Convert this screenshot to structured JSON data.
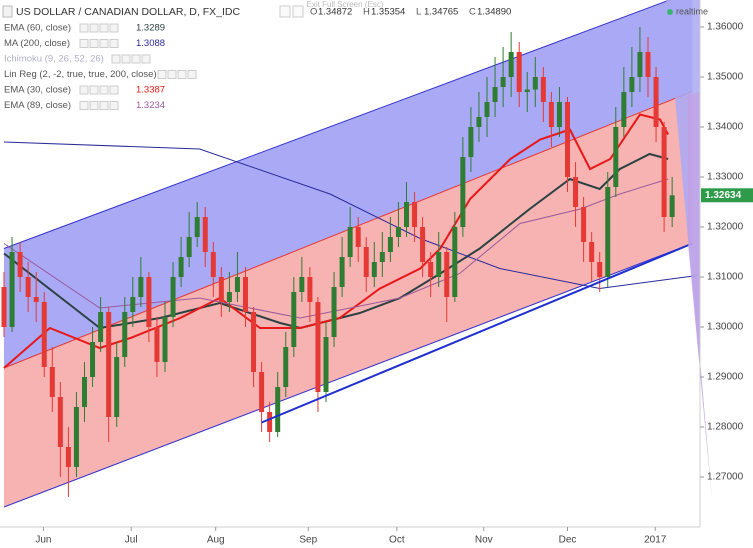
{
  "header": {
    "title": "US DOLLAR / CANADIAN DOLLAR, D, FX_IDC",
    "exit_hint": "Exit Full Screen (Esc)",
    "status": "realtime",
    "ohlc": [
      {
        "label": "O",
        "value": "1.34872"
      },
      {
        "label": "H",
        "value": "1.35354"
      },
      {
        "label": "L",
        "value": "1.34765"
      },
      {
        "label": "C",
        "value": "1.34890"
      }
    ]
  },
  "chart_data": {
    "type": "candlestick",
    "ylim": [
      1.26,
      1.3654
    ],
    "yticks": [
      {
        "value": 1.27,
        "label": "1.27000"
      },
      {
        "value": 1.28,
        "label": "1.28000"
      },
      {
        "value": 1.29,
        "label": "1.29000"
      },
      {
        "value": 1.3,
        "label": "1.30000"
      },
      {
        "value": 1.31,
        "label": "1.31000"
      },
      {
        "value": 1.32,
        "label": "1.32000"
      },
      {
        "value": 1.33,
        "label": "1.33000"
      },
      {
        "value": 1.34,
        "label": "1.34000"
      },
      {
        "value": 1.35,
        "label": "1.35000"
      },
      {
        "value": 1.36,
        "label": "1.36000"
      }
    ],
    "xticks": [
      {
        "value": 4.9,
        "label": "Jun"
      },
      {
        "value": 15.8,
        "label": "Jul"
      },
      {
        "value": 26.3,
        "label": "Aug"
      },
      {
        "value": 37.8,
        "label": "Sep"
      },
      {
        "value": 48.8,
        "label": "Oct"
      },
      {
        "value": 59.6,
        "label": "Nov"
      },
      {
        "value": 70,
        "label": "Dec"
      },
      {
        "value": 80.9,
        "label": "2017"
      }
    ],
    "up_color": "#2e7d32",
    "down_color": "#e53935",
    "ohlc": [
      [
        1.308,
        1.311,
        1.298,
        1.3
      ],
      [
        1.3,
        1.318,
        1.299,
        1.315
      ],
      [
        1.315,
        1.317,
        1.307,
        1.31
      ],
      [
        1.31,
        1.313,
        1.303,
        1.306
      ],
      [
        1.306,
        1.311,
        1.301,
        1.305
      ],
      [
        1.305,
        1.307,
        1.29,
        1.292
      ],
      [
        1.292,
        1.296,
        1.283,
        1.286
      ],
      [
        1.286,
        1.289,
        1.27,
        1.276
      ],
      [
        1.276,
        1.28,
        1.266,
        1.272
      ],
      [
        1.272,
        1.287,
        1.27,
        1.284
      ],
      [
        1.284,
        1.293,
        1.281,
        1.29
      ],
      [
        1.29,
        1.3,
        1.288,
        1.297
      ],
      [
        1.297,
        1.306,
        1.295,
        1.303
      ],
      [
        1.303,
        1.304,
        1.277,
        1.282
      ],
      [
        1.282,
        1.297,
        1.28,
        1.294
      ],
      [
        1.294,
        1.306,
        1.292,
        1.303
      ],
      [
        1.303,
        1.31,
        1.3,
        1.306
      ],
      [
        1.306,
        1.314,
        1.304,
        1.31
      ],
      [
        1.31,
        1.311,
        1.297,
        1.3
      ],
      [
        1.3,
        1.302,
        1.29,
        1.293
      ],
      [
        1.293,
        1.305,
        1.291,
        1.302
      ],
      [
        1.302,
        1.313,
        1.3,
        1.31
      ],
      [
        1.31,
        1.318,
        1.308,
        1.314
      ],
      [
        1.314,
        1.323,
        1.312,
        1.318
      ],
      [
        1.318,
        1.325,
        1.316,
        1.322
      ],
      [
        1.322,
        1.324,
        1.312,
        1.315
      ],
      [
        1.315,
        1.317,
        1.306,
        1.31
      ],
      [
        1.31,
        1.312,
        1.302,
        1.305
      ],
      [
        1.305,
        1.311,
        1.303,
        1.307
      ],
      [
        1.307,
        1.315,
        1.305,
        1.31
      ],
      [
        1.31,
        1.312,
        1.3,
        1.303
      ],
      [
        1.303,
        1.304,
        1.288,
        1.291
      ],
      [
        1.291,
        1.293,
        1.279,
        1.283
      ],
      [
        1.283,
        1.285,
        1.277,
        1.279
      ],
      [
        1.279,
        1.291,
        1.278,
        1.288
      ],
      [
        1.288,
        1.299,
        1.286,
        1.296
      ],
      [
        1.296,
        1.31,
        1.294,
        1.307
      ],
      [
        1.307,
        1.314,
        1.305,
        1.31
      ],
      [
        1.31,
        1.312,
        1.301,
        1.305
      ],
      [
        1.305,
        1.306,
        1.283,
        1.287
      ],
      [
        1.287,
        1.301,
        1.285,
        1.298
      ],
      [
        1.298,
        1.311,
        1.296,
        1.308
      ],
      [
        1.308,
        1.318,
        1.306,
        1.314
      ],
      [
        1.314,
        1.324,
        1.312,
        1.32
      ],
      [
        1.32,
        1.322,
        1.313,
        1.316
      ],
      [
        1.316,
        1.318,
        1.307,
        1.31
      ],
      [
        1.31,
        1.317,
        1.308,
        1.313
      ],
      [
        1.313,
        1.319,
        1.31,
        1.315
      ],
      [
        1.315,
        1.322,
        1.313,
        1.318
      ],
      [
        1.318,
        1.325,
        1.316,
        1.32
      ],
      [
        1.32,
        1.329,
        1.318,
        1.325
      ],
      [
        1.325,
        1.327,
        1.317,
        1.32
      ],
      [
        1.32,
        1.322,
        1.31,
        1.313
      ],
      [
        1.313,
        1.315,
        1.306,
        1.31
      ],
      [
        1.31,
        1.319,
        1.308,
        1.315
      ],
      [
        1.315,
        1.316,
        1.301,
        1.306
      ],
      [
        1.306,
        1.323,
        1.305,
        1.32
      ],
      [
        1.32,
        1.338,
        1.318,
        1.334
      ],
      [
        1.334,
        1.344,
        1.331,
        1.34
      ],
      [
        1.34,
        1.347,
        1.337,
        1.342
      ],
      [
        1.342,
        1.35,
        1.338,
        1.345
      ],
      [
        1.345,
        1.354,
        1.342,
        1.348
      ],
      [
        1.348,
        1.356,
        1.344,
        1.35
      ],
      [
        1.35,
        1.359,
        1.346,
        1.355
      ],
      [
        1.355,
        1.357,
        1.344,
        1.347
      ],
      [
        1.347,
        1.351,
        1.343,
        1.3475
      ],
      [
        1.3475,
        1.354,
        1.344,
        1.35
      ],
      [
        1.35,
        1.352,
        1.341,
        1.345
      ],
      [
        1.345,
        1.347,
        1.336,
        1.34
      ],
      [
        1.34,
        1.348,
        1.338,
        1.345
      ],
      [
        1.345,
        1.346,
        1.327,
        1.33
      ],
      [
        1.33,
        1.333,
        1.32,
        1.324
      ],
      [
        1.324,
        1.326,
        1.313,
        1.317
      ],
      [
        1.317,
        1.319,
        1.309,
        1.313
      ],
      [
        1.313,
        1.315,
        1.307,
        1.31
      ],
      [
        1.31,
        1.331,
        1.308,
        1.328
      ],
      [
        1.328,
        1.344,
        1.326,
        1.34
      ],
      [
        1.34,
        1.352,
        1.338,
        1.347
      ],
      [
        1.347,
        1.356,
        1.344,
        1.35
      ],
      [
        1.35,
        1.36,
        1.347,
        1.355
      ],
      [
        1.355,
        1.358,
        1.346,
        1.35
      ],
      [
        1.35,
        1.352,
        1.337,
        1.34
      ],
      [
        1.34,
        1.341,
        1.319,
        1.322
      ],
      [
        1.322,
        1.33,
        1.32,
        1.32634
      ]
    ],
    "last_price": {
      "value": 1.32634,
      "label": "1.32634",
      "color": "#2e9b4a"
    },
    "series": [
      {
        "name": "EMA (60, close)",
        "legend_value": "1.3289",
        "color": "#2c4242",
        "width": 2,
        "x": [
          0,
          11.9,
          19.4,
          26.8,
          34.3,
          36.8,
          44.2,
          49.2,
          54.2,
          59.1,
          65.3,
          70.3,
          74,
          76.5,
          80.2,
          82.5
        ],
        "values": [
          1.3147,
          1.2998,
          1.3018,
          1.3048,
          1.3008,
          1.2998,
          1.3028,
          1.3058,
          1.3107,
          1.3157,
          1.3236,
          1.3296,
          1.3276,
          1.3316,
          1.3346,
          1.3336
        ]
      },
      {
        "name": "MA (200, close)",
        "legend_value": "1.3088",
        "color": "#2a2a99",
        "width": 1,
        "x": [
          0,
          24.3,
          40.5,
          51.7,
          61.6,
          74,
          86.1
        ],
        "values": [
          1.337,
          1.3356,
          1.3266,
          1.3177,
          1.3117,
          1.3077,
          1.3103
        ]
      },
      {
        "name": "Ichimoku (9, 26, 52, 26)",
        "color": "#b0b0c8"
      },
      {
        "name": "Lin Reg (2, -2, true, true, 200, close)",
        "color": "#555555",
        "x": [
          0,
          85.5
        ],
        "upper": [
          1.3157,
          1.3671
        ],
        "middle": [
          1.2918,
          1.3471
        ],
        "lower": [
          1.264,
          1.3167
        ],
        "upper_fill": "#a9a9f6",
        "lower_fill": "#f7b2b2"
      },
      {
        "name": "EMA (30, close)",
        "legend_value": "1.3387",
        "color": "#e81818",
        "width": 2,
        "x": [
          0,
          5.7,
          11.9,
          15.7,
          21.9,
          26.8,
          31.8,
          36.8,
          41.7,
          46.7,
          51.7,
          54.2,
          57.9,
          62.9,
          66.6,
          70.3,
          72.8,
          75.3,
          79,
          81.5,
          82.5
        ],
        "values": [
          1.2918,
          1.2998,
          1.2958,
          1.2978,
          1.3018,
          1.3058,
          1.2998,
          1.2998,
          1.3018,
          1.3077,
          1.3117,
          1.3157,
          1.3256,
          1.3336,
          1.3375,
          1.3395,
          1.3316,
          1.3336,
          1.3425,
          1.3415,
          1.3385
        ]
      },
      {
        "name": "EMA (89, close)",
        "legend_value": "1.3234",
        "color": "#9a5a9a",
        "width": 1,
        "x": [
          0,
          11.9,
          24.3,
          36.8,
          49.2,
          56.6,
          64.1,
          71.6,
          76.5,
          82.5
        ],
        "values": [
          1.3167,
          1.3038,
          1.3058,
          1.3018,
          1.3058,
          1.3107,
          1.3207,
          1.3236,
          1.3266,
          1.3296
        ]
      }
    ],
    "trendline": {
      "color": "#1f2fd0",
      "x": [
        32,
        85.5
      ],
      "values": [
        1.2809,
        1.3167
      ]
    }
  }
}
